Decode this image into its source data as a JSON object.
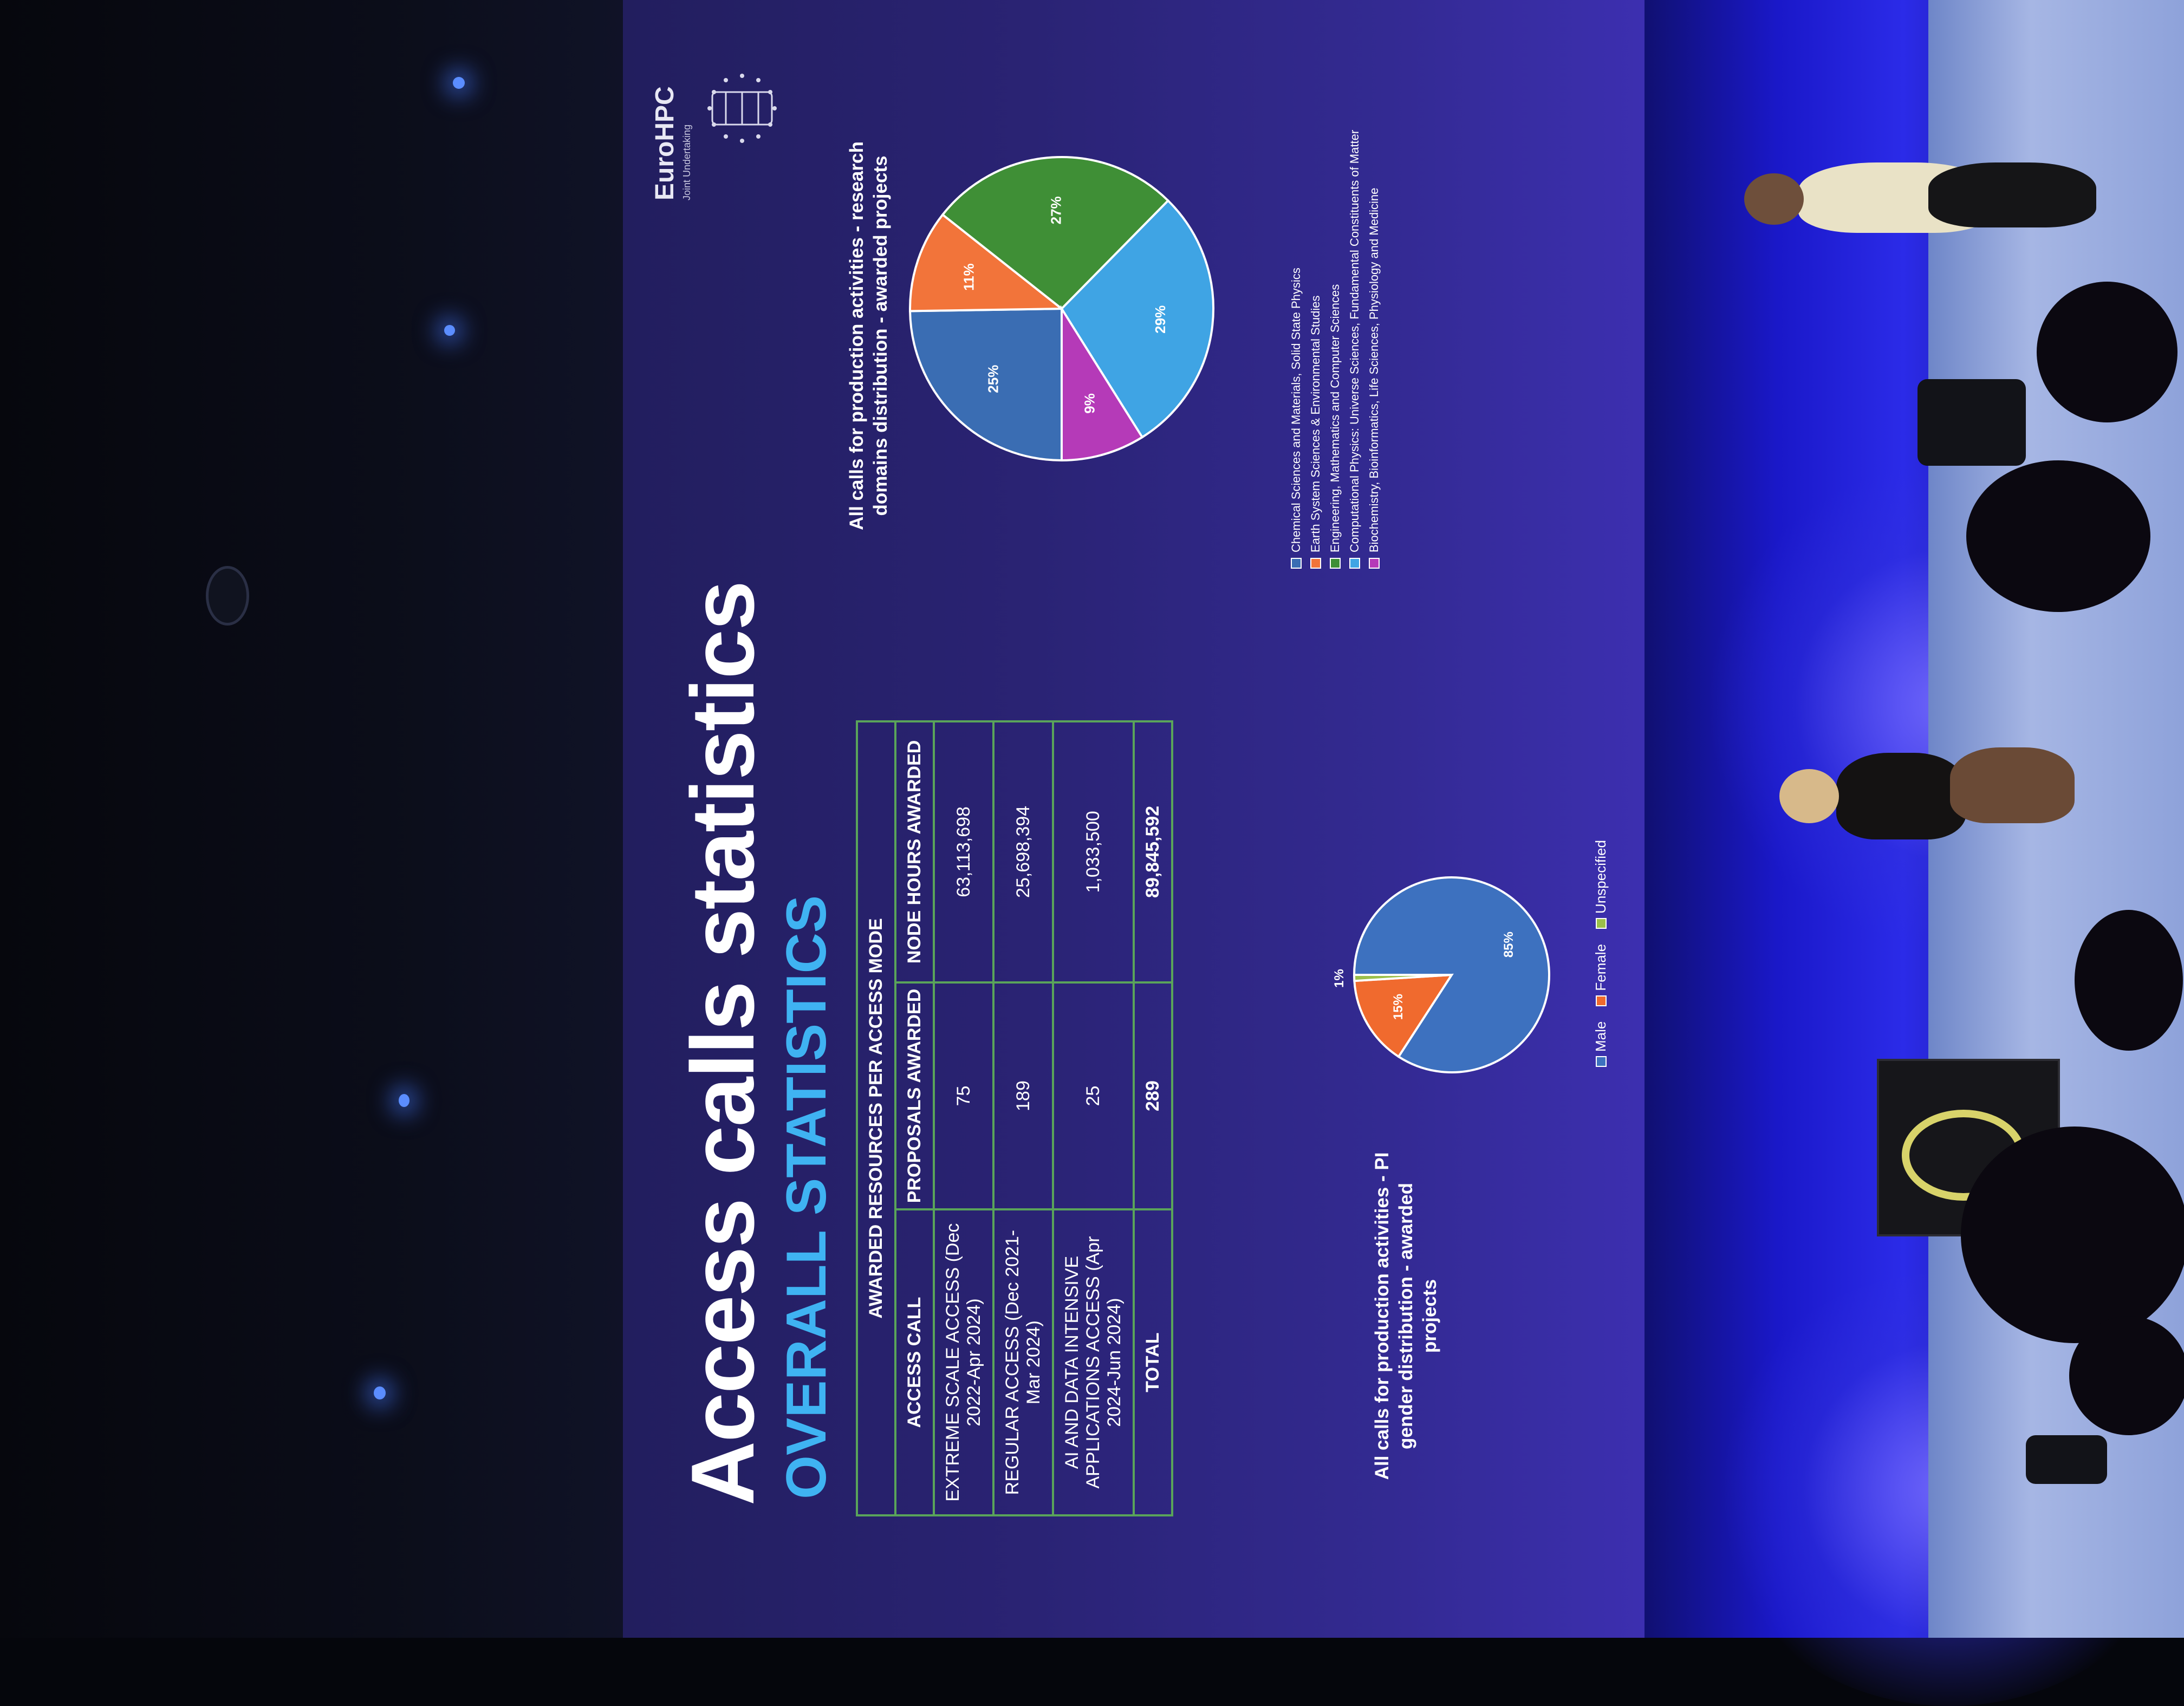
{
  "slide": {
    "title": "Access calls statistics",
    "subtitle": "OVERALL STATISTICS",
    "logo": {
      "name": "EuroHPC",
      "subtitle": "Joint Undertaking"
    }
  },
  "table": {
    "caption": "AWARDED RESOURCES PER ACCESS MODE",
    "headers": [
      "ACCESS CALL",
      "PROPOSALS AWARDED",
      "NODE HOURS AWARDED"
    ],
    "rows": [
      [
        "EXTREME SCALE ACCESS (Dec 2022-Apr 2024)",
        "75",
        "63,113,698"
      ],
      [
        "REGULAR ACCESS (Dec 2021-Mar 2024)",
        "189",
        "25,698,394"
      ],
      [
        "AI AND DATA INTENSIVE APPLICATIONS ACCESS (Apr 2024-Jun 2024)",
        "25",
        "1,033,500"
      ],
      [
        "TOTAL",
        "289",
        "89,845,592"
      ]
    ]
  },
  "chart_data": [
    {
      "type": "pie",
      "title": "All calls for production activities - PI gender distribution - awarded projects",
      "categories": [
        "Male",
        "Female",
        "Unspecified"
      ],
      "values": [
        85,
        15,
        1
      ],
      "labels": [
        "85%",
        "15%",
        "1%"
      ],
      "colors": [
        "#3d71bf",
        "#f06a2e",
        "#9bbf4a"
      ],
      "legend_position": "bottom"
    },
    {
      "type": "pie",
      "title": "All calls for production activities - research domains distribution - awarded projects",
      "categories": [
        "Chemical Sciences and Materials, Solid State Physics",
        "Earth System Sciences & Environmental Studies",
        "Engineering, Mathematics and Computer Sciences",
        "Computational Physics: Universe Sciences, Fundamental Constituents of Matter",
        "Biochemistry, Bioinformatics, Life Sciences, Physiology and Medicine"
      ],
      "values": [
        25,
        11,
        27,
        29,
        9
      ],
      "labels": [
        "25%",
        "11%",
        "27%",
        "29%",
        "9%"
      ],
      "colors": [
        "#3a6db3",
        "#f2743a",
        "#3f8f36",
        "#3fa4e4",
        "#b53ab8"
      ],
      "legend_position": "bottom"
    }
  ]
}
